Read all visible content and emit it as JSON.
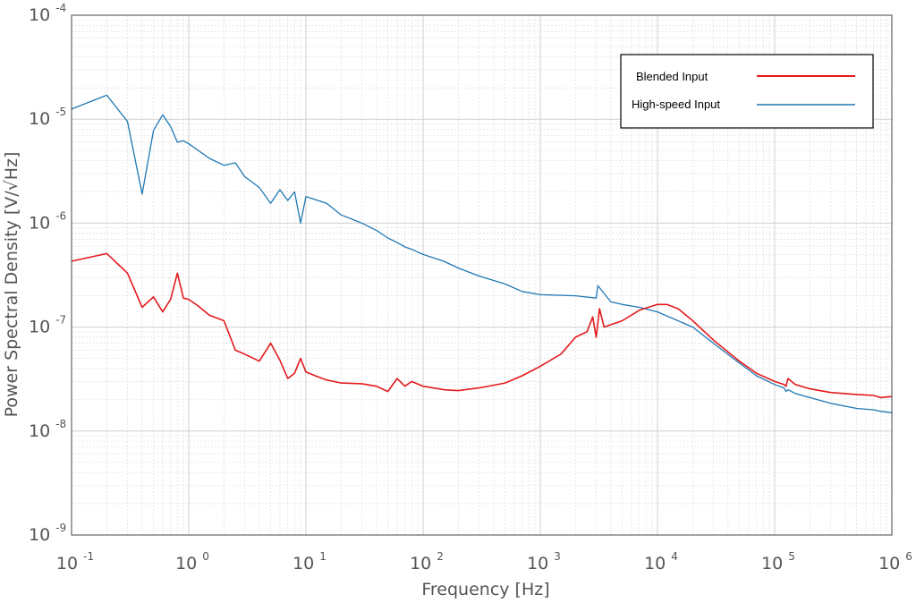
{
  "chart_data": {
    "type": "line",
    "title": "",
    "xlabel": "Frequency [Hz]",
    "ylabel": "Power Spectral Density [V/√Hz]",
    "xscale": "log",
    "yscale": "log",
    "xlim": [
      0.1,
      1000000
    ],
    "ylim": [
      1e-09,
      0.0001
    ],
    "x_ticks": [
      {
        "base": "10",
        "exp": "-1"
      },
      {
        "base": "10",
        "exp": "0"
      },
      {
        "base": "10",
        "exp": "1"
      },
      {
        "base": "10",
        "exp": "2"
      },
      {
        "base": "10",
        "exp": "3"
      },
      {
        "base": "10",
        "exp": "4"
      },
      {
        "base": "10",
        "exp": "5"
      },
      {
        "base": "10",
        "exp": "6"
      }
    ],
    "y_ticks": [
      {
        "base": "10",
        "exp": "-4"
      },
      {
        "base": "10",
        "exp": "-5"
      },
      {
        "base": "10",
        "exp": "-6"
      },
      {
        "base": "10",
        "exp": "-7"
      },
      {
        "base": "10",
        "exp": "-8"
      },
      {
        "base": "10",
        "exp": "-9"
      }
    ],
    "grid": true,
    "minor_grid": true,
    "legend_position": "top-right",
    "series": [
      {
        "name": "Blended Input",
        "color": "#e31a1c",
        "x": [
          0.1,
          0.2,
          0.3,
          0.4,
          0.5,
          0.6,
          0.7,
          0.8,
          0.9,
          1.0,
          1.2,
          1.5,
          2,
          2.5,
          3,
          4,
          5,
          6,
          7,
          8,
          9,
          10,
          12,
          15,
          20,
          30,
          40,
          50,
          60,
          70,
          80,
          100,
          150,
          200,
          300,
          500,
          700,
          1000,
          1500,
          2000,
          2500,
          2800,
          3000,
          3200,
          3500,
          5000,
          7000,
          10000,
          12000,
          15000,
          20000,
          30000,
          50000,
          70000,
          100000,
          120000,
          125000,
          130000,
          150000,
          200000,
          300000,
          500000,
          700000,
          800000,
          1000000
        ],
        "values": [
          4.3e-07,
          5.1e-07,
          3.3e-07,
          1.55e-07,
          1.95e-07,
          1.4e-07,
          1.85e-07,
          3.3e-07,
          1.9e-07,
          1.85e-07,
          1.6e-07,
          1.3e-07,
          1.15e-07,
          6e-08,
          5.5e-08,
          4.7e-08,
          7e-08,
          4.8e-08,
          3.2e-08,
          3.6e-08,
          5e-08,
          3.7e-08,
          3.4e-08,
          3.1e-08,
          2.9e-08,
          2.85e-08,
          2.7e-08,
          2.4e-08,
          3.2e-08,
          2.7e-08,
          3e-08,
          2.7e-08,
          2.5e-08,
          2.45e-08,
          2.6e-08,
          2.9e-08,
          3.4e-08,
          4.2e-08,
          5.5e-08,
          8e-08,
          9e-08,
          1.25e-07,
          8e-08,
          1.5e-07,
          1e-07,
          1.15e-07,
          1.45e-07,
          1.65e-07,
          1.65e-07,
          1.5e-07,
          1.15e-07,
          7.5e-08,
          4.7e-08,
          3.6e-08,
          3e-08,
          2.8e-08,
          2.7e-08,
          3.2e-08,
          2.8e-08,
          2.55e-08,
          2.35e-08,
          2.25e-08,
          2.2e-08,
          2.1e-08,
          2.15e-08
        ]
      },
      {
        "name": "High-speed Input",
        "color": "#1f77b4",
        "x": [
          0.1,
          0.2,
          0.3,
          0.4,
          0.5,
          0.6,
          0.7,
          0.8,
          0.9,
          1.0,
          1.5,
          2,
          2.5,
          3,
          4,
          5,
          6,
          7,
          8,
          9,
          10,
          15,
          20,
          30,
          40,
          50,
          60,
          70,
          80,
          100,
          150,
          200,
          300,
          500,
          700,
          1000,
          2000,
          3000,
          3100,
          4000,
          5000,
          7000,
          10000,
          20000,
          30000,
          50000,
          70000,
          100000,
          120000,
          125000,
          130000,
          150000,
          200000,
          300000,
          500000,
          700000,
          800000,
          1000000
        ],
        "values": [
          1.25e-05,
          1.7e-05,
          9.5e-06,
          1.9e-06,
          7.8e-06,
          1.1e-05,
          8.5e-06,
          6e-06,
          6.2e-06,
          5.8e-06,
          4.2e-06,
          3.6e-06,
          3.8e-06,
          2.8e-06,
          2.2e-06,
          1.55e-06,
          2.1e-06,
          1.65e-06,
          2e-06,
          1e-06,
          1.8e-06,
          1.55e-06,
          1.2e-06,
          1e-06,
          8.5e-07,
          7.2e-07,
          6.5e-07,
          5.9e-07,
          5.6e-07,
          5e-07,
          4.3e-07,
          3.7e-07,
          3.1e-07,
          2.6e-07,
          2.2e-07,
          2.05e-07,
          2e-07,
          1.9e-07,
          2.5e-07,
          1.75e-07,
          1.65e-07,
          1.55e-07,
          1.4e-07,
          1e-07,
          7e-08,
          4.5e-08,
          3.4e-08,
          2.8e-08,
          2.6e-08,
          2.4e-08,
          2.5e-08,
          2.3e-08,
          2.1e-08,
          1.85e-08,
          1.65e-08,
          1.6e-08,
          1.55e-08,
          1.5e-08
        ]
      }
    ]
  }
}
